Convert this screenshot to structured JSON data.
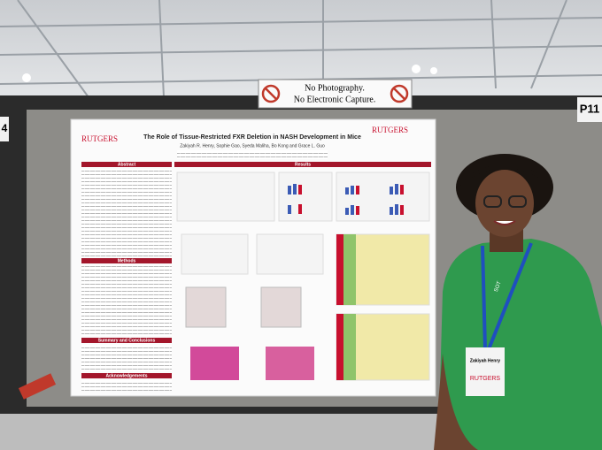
{
  "sign": {
    "line1": "No Photography.",
    "line2": "No Electronic Capture."
  },
  "board_labels": {
    "left": "4",
    "right": "P11"
  },
  "poster": {
    "logo_left": "RUTGERS",
    "logo_right": "RUTGERS",
    "title": "The Role of Tissue-Restricted FXR Deletion in NASH Development in Mice",
    "authors": "Zakiyah R. Henry, Sophie Gao, Syeda Maliha, Bo Kong and Grace L. Guo",
    "sections": {
      "abstract": "Abstract",
      "results": "Results",
      "methods": "Methods",
      "summary": "Summary and Conclusions",
      "acknowledgements": "Acknowledgements"
    }
  },
  "badge": {
    "name": "Zakiyah Henry",
    "logo": "RUTGERS",
    "lanyard": "SOT"
  }
}
